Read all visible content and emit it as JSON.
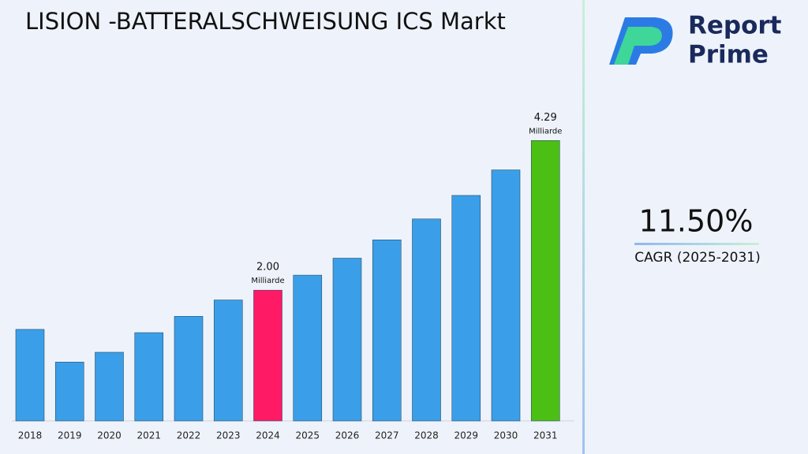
{
  "chart_data": {
    "type": "bar",
    "title": "LISION -BATTERALSCHWEISUNG ICS Markt",
    "categories": [
      "2018",
      "2019",
      "2020",
      "2021",
      "2022",
      "2023",
      "2024",
      "2025",
      "2026",
      "2027",
      "2028",
      "2029",
      "2030",
      "2031"
    ],
    "values": [
      1.4,
      0.9,
      1.05,
      1.35,
      1.6,
      1.85,
      2.0,
      2.23,
      2.49,
      2.77,
      3.09,
      3.45,
      3.84,
      4.29
    ],
    "value_labels": [
      null,
      null,
      null,
      null,
      null,
      null,
      "2.00",
      null,
      null,
      null,
      null,
      null,
      null,
      "4.29"
    ],
    "value_unit": "Milliarde",
    "colors": [
      "#3a9fe8",
      "#3a9fe8",
      "#3a9fe8",
      "#3a9fe8",
      "#3a9fe8",
      "#3a9fe8",
      "#ff1a66",
      "#3a9fe8",
      "#3a9fe8",
      "#3a9fe8",
      "#3a9fe8",
      "#3a9fe8",
      "#3a9fe8",
      "#4cbf14"
    ],
    "ylim": [
      0,
      4.8
    ]
  },
  "side_panel": {
    "cagr_value": "11.50%",
    "cagr_label": "CAGR (2025-2031)"
  },
  "logo": {
    "line1": "Report",
    "line2": "Prime"
  }
}
